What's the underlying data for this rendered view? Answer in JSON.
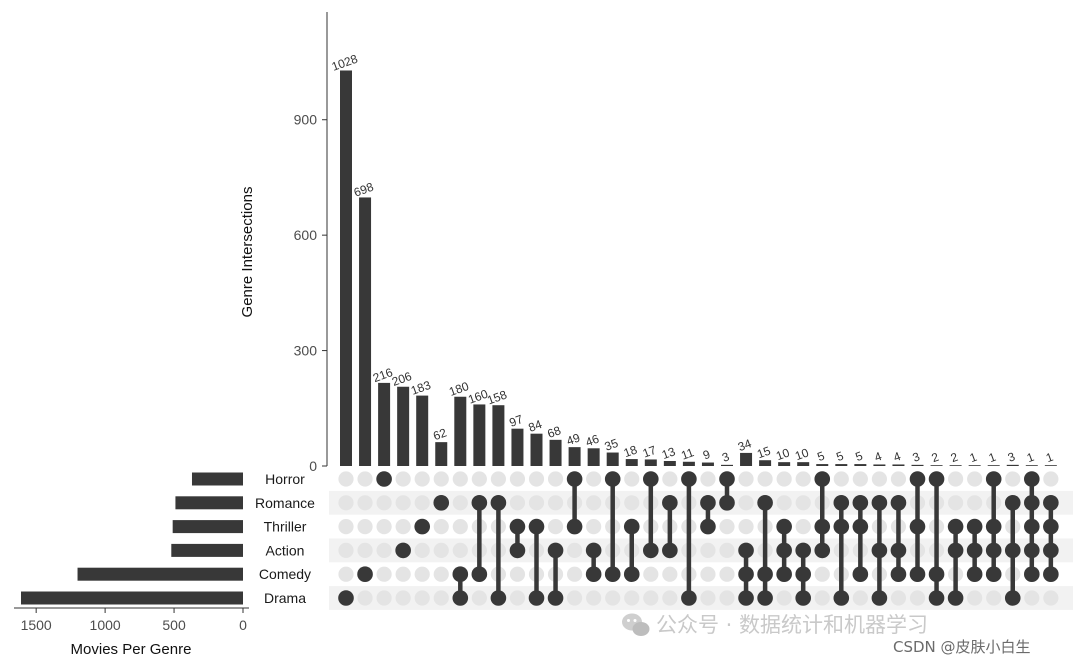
{
  "chart_data": {
    "type": "bar",
    "chart_kind": "upset",
    "ylabel": "Genre Intersections",
    "xlabel": "Movies Per Genre",
    "y_ticks": [
      "0",
      "300",
      "600",
      "900"
    ],
    "ylim": [
      0,
      1180
    ],
    "set_ticks": [
      "1500",
      "1000",
      "500",
      "0"
    ],
    "sets": [
      {
        "name": "Horror",
        "size": 370
      },
      {
        "name": "Romance",
        "size": 490
      },
      {
        "name": "Thriller",
        "size": 510
      },
      {
        "name": "Action",
        "size": 520
      },
      {
        "name": "Comedy",
        "size": 1200
      },
      {
        "name": "Drama",
        "size": 1610
      }
    ],
    "intersections": [
      {
        "label": "1028",
        "value": 1028,
        "sets": [
          "Drama"
        ]
      },
      {
        "label": "698",
        "value": 698,
        "sets": [
          "Comedy"
        ]
      },
      {
        "label": "216",
        "value": 216,
        "sets": [
          "Horror"
        ]
      },
      {
        "label": "206",
        "value": 206,
        "sets": [
          "Action"
        ]
      },
      {
        "label": "183",
        "value": 183,
        "sets": [
          "Thriller"
        ]
      },
      {
        "label": "62",
        "value": 62,
        "sets": [
          "Romance"
        ]
      },
      {
        "label": "180",
        "value": 180,
        "sets": [
          "Comedy",
          "Drama"
        ]
      },
      {
        "label": "160",
        "value": 160,
        "sets": [
          "Romance",
          "Comedy"
        ]
      },
      {
        "label": "158",
        "value": 158,
        "sets": [
          "Romance",
          "Drama"
        ]
      },
      {
        "label": "97",
        "value": 97,
        "sets": [
          "Thriller",
          "Action"
        ]
      },
      {
        "label": "84",
        "value": 84,
        "sets": [
          "Thriller",
          "Drama"
        ]
      },
      {
        "label": "68",
        "value": 68,
        "sets": [
          "Action",
          "Drama"
        ]
      },
      {
        "label": "49",
        "value": 49,
        "sets": [
          "Horror",
          "Thriller"
        ]
      },
      {
        "label": "46",
        "value": 46,
        "sets": [
          "Action",
          "Comedy"
        ]
      },
      {
        "label": "35",
        "value": 35,
        "sets": [
          "Horror",
          "Comedy"
        ]
      },
      {
        "label": "18",
        "value": 18,
        "sets": [
          "Thriller",
          "Comedy"
        ]
      },
      {
        "label": "17",
        "value": 17,
        "sets": [
          "Horror",
          "Action"
        ]
      },
      {
        "label": "13",
        "value": 13,
        "sets": [
          "Romance",
          "Action"
        ]
      },
      {
        "label": "11",
        "value": 11,
        "sets": [
          "Horror",
          "Drama"
        ]
      },
      {
        "label": "9",
        "value": 9,
        "sets": [
          "Romance",
          "Thriller"
        ]
      },
      {
        "label": "3",
        "value": 3,
        "sets": [
          "Horror",
          "Romance"
        ]
      },
      {
        "label": "34",
        "value": 34,
        "sets": [
          "Action",
          "Comedy",
          "Drama"
        ]
      },
      {
        "label": "15",
        "value": 15,
        "sets": [
          "Romance",
          "Comedy",
          "Drama"
        ]
      },
      {
        "label": "10",
        "value": 10,
        "sets": [
          "Thriller",
          "Action",
          "Comedy"
        ]
      },
      {
        "label": "10",
        "value": 10,
        "sets": [
          "Action",
          "Comedy",
          "Drama"
        ]
      },
      {
        "label": "5",
        "value": 5,
        "sets": [
          "Horror",
          "Thriller",
          "Action"
        ]
      },
      {
        "label": "5",
        "value": 5,
        "sets": [
          "Romance",
          "Thriller",
          "Drama"
        ]
      },
      {
        "label": "5",
        "value": 5,
        "sets": [
          "Romance",
          "Thriller",
          "Comedy"
        ]
      },
      {
        "label": "4",
        "value": 4,
        "sets": [
          "Romance",
          "Action",
          "Drama"
        ]
      },
      {
        "label": "4",
        "value": 4,
        "sets": [
          "Romance",
          "Action",
          "Comedy"
        ]
      },
      {
        "label": "3",
        "value": 3,
        "sets": [
          "Horror",
          "Thriller",
          "Comedy"
        ]
      },
      {
        "label": "2",
        "value": 2,
        "sets": [
          "Horror",
          "Comedy",
          "Drama"
        ]
      },
      {
        "label": "2",
        "value": 2,
        "sets": [
          "Thriller",
          "Action",
          "Drama"
        ]
      },
      {
        "label": "1",
        "value": 1,
        "sets": [
          "Thriller",
          "Action",
          "Comedy"
        ]
      },
      {
        "label": "1",
        "value": 1,
        "sets": [
          "Horror",
          "Thriller",
          "Action",
          "Comedy"
        ]
      },
      {
        "label": "3",
        "value": 3,
        "sets": [
          "Romance",
          "Action",
          "Drama"
        ]
      },
      {
        "label": "1",
        "value": 1,
        "sets": [
          "Horror",
          "Romance",
          "Thriller",
          "Action",
          "Comedy"
        ]
      },
      {
        "label": "1",
        "value": 1,
        "sets": [
          "Romance",
          "Thriller",
          "Action",
          "Comedy"
        ]
      }
    ],
    "colors": {
      "bar": "#383838",
      "dot_active": "#383838",
      "dot_inactive": "#e4e4e4",
      "stripe": "#f2f2f2"
    }
  },
  "watermark": {
    "text": "公众号 · 数据统计和机器学习",
    "csdn": "CSDN @皮肤小白生"
  }
}
